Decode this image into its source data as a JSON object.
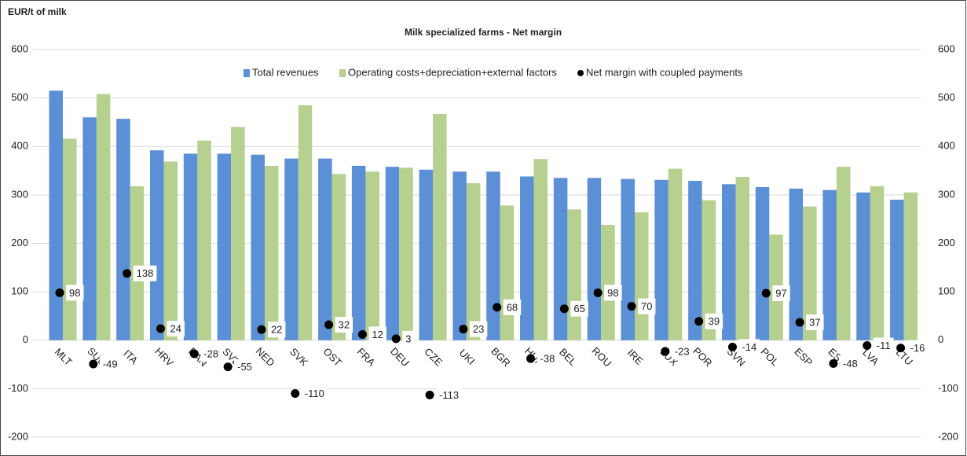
{
  "chart_data": {
    "type": "bar",
    "title": "Milk specialized farms - Net margin",
    "y_label": "EUR/t of milk",
    "categories": [
      "MLT",
      "SUO",
      "ITA",
      "HRV",
      "DAN",
      "SVE",
      "NED",
      "SVK",
      "OST",
      "FRA",
      "DEU",
      "CZE",
      "UKI",
      "BGR",
      "HUN",
      "BEL",
      "ROU",
      "IRE",
      "LUX",
      "POR",
      "SVN",
      "POL",
      "ESP",
      "EST",
      "LVA",
      "LTU"
    ],
    "series": [
      {
        "name": "Total revenues",
        "color": "#5b8fd6",
        "kind": "bar",
        "values": [
          515,
          460,
          457,
          392,
          385,
          385,
          383,
          375,
          375,
          360,
          358,
          352,
          348,
          348,
          338,
          335,
          335,
          333,
          331,
          329,
          322,
          316,
          313,
          310,
          305,
          290
        ]
      },
      {
        "name": "Operating costs+depreciation+external factors",
        "color": "#b5d08f",
        "kind": "bar",
        "values": [
          416,
          508,
          318,
          369,
          412,
          440,
          360,
          485,
          343,
          348,
          356,
          467,
          324,
          278,
          374,
          270,
          238,
          264,
          354,
          289,
          337,
          218,
          276,
          358,
          318,
          305
        ]
      },
      {
        "name": "Net margin with coupled payments",
        "color": "#000000",
        "kind": "dot",
        "label_color": "#e8222a",
        "values": [
          98,
          -49,
          138,
          24,
          -28,
          -55,
          22,
          -110,
          32,
          12,
          3,
          -113,
          23,
          68,
          -38,
          65,
          98,
          70,
          -23,
          39,
          -14,
          97,
          37,
          -48,
          -11,
          -16
        ]
      }
    ],
    "ylim": [
      -200,
      600
    ],
    "yticks": [
      -200,
      -100,
      0,
      100,
      200,
      300,
      400,
      500,
      600
    ],
    "grid": true,
    "legend": "top"
  }
}
